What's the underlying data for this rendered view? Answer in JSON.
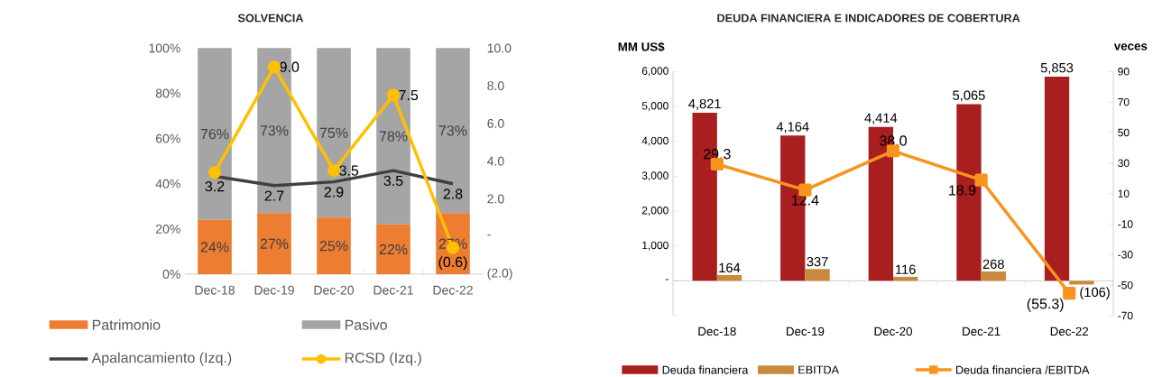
{
  "chart_data": [
    {
      "type": "bar",
      "title": "SOLVENCIA",
      "categories": [
        "Dec-18",
        "Dec-19",
        "Dec-20",
        "Dec-21",
        "Dec-22"
      ],
      "stacked": true,
      "legend": "bottom",
      "ylim": [
        0,
        100
      ],
      "yticks": [
        {
          "value": 0,
          "label": "0%"
        },
        {
          "value": 20,
          "label": "20%"
        },
        {
          "value": 40,
          "label": "40%"
        },
        {
          "value": 60,
          "label": "60%"
        },
        {
          "value": 80,
          "label": "80%"
        },
        {
          "value": 100,
          "label": "100%"
        }
      ],
      "y2lim": [
        -2,
        10
      ],
      "y2ticks": [
        {
          "value": -2,
          "label": "(2.0)"
        },
        {
          "value": 0,
          "label": "-"
        },
        {
          "value": 2,
          "label": "2.0"
        },
        {
          "value": 4,
          "label": "4.0"
        },
        {
          "value": 6,
          "label": "6.0"
        },
        {
          "value": 8,
          "label": "8.0"
        },
        {
          "value": 10,
          "label": "10.0"
        }
      ],
      "series": [
        {
          "name": "Patrimonio",
          "type": "bar",
          "color": "#ed7d31",
          "values": [
            24,
            27,
            25,
            22,
            27
          ],
          "value_labels": [
            "24%",
            "27%",
            "25%",
            "22%",
            "27%"
          ]
        },
        {
          "name": "Pasivo",
          "type": "bar",
          "color": "#a5a5a5",
          "values": [
            76,
            73,
            75,
            78,
            73
          ],
          "value_labels": [
            "76%",
            "73%",
            "75%",
            "78%",
            "73%"
          ]
        },
        {
          "name": "Apalancamiento (Izq.)",
          "type": "line",
          "axis": "y2",
          "color": "#404040",
          "marker": "none",
          "values": [
            3.2,
            2.7,
            2.9,
            3.5,
            2.8
          ],
          "value_labels": [
            "3.2",
            "2.7",
            "2.9",
            "3.5",
            "2.8"
          ]
        },
        {
          "name": "RCSD (Izq.)",
          "type": "line",
          "axis": "y2",
          "color": "#ffc000",
          "marker": "circle",
          "values": [
            3.4,
            9.0,
            3.5,
            7.5,
            -0.6
          ],
          "value_labels": [
            null,
            "9.0",
            "3.5",
            "7.5",
            "(0.6)"
          ]
        }
      ]
    },
    {
      "type": "bar",
      "title": "DEUDA FINANCIERA E INDICADORES DE COBERTURA",
      "ylabel": "MM US$",
      "y2label": "veces",
      "categories": [
        "Dec-18",
        "Dec-19",
        "Dec-20",
        "Dec-21",
        "Dec-22"
      ],
      "legend": "bottom",
      "ylim": [
        -1000,
        6000
      ],
      "yticks": [
        {
          "value": -1000,
          "label": null
        },
        {
          "value": 0,
          "label": "-"
        },
        {
          "value": 1000,
          "label": "1,000"
        },
        {
          "value": 2000,
          "label": "2,000"
        },
        {
          "value": 3000,
          "label": "3,000"
        },
        {
          "value": 4000,
          "label": "4,000"
        },
        {
          "value": 5000,
          "label": "5,000"
        },
        {
          "value": 6000,
          "label": "6,000"
        }
      ],
      "y2lim": [
        -70,
        90
      ],
      "y2ticks": [
        -70,
        -50,
        -30,
        -10,
        10,
        30,
        50,
        70,
        90
      ],
      "series": [
        {
          "name": "Deuda financiera",
          "type": "bar",
          "color": "#a91e1e",
          "values": [
            4821,
            4164,
            4414,
            5065,
            5853
          ],
          "value_labels": [
            "4,821",
            "4,164",
            "4,414",
            "5,065",
            "5,853"
          ]
        },
        {
          "name": "EBITDA",
          "type": "bar",
          "color": "#c98a3d",
          "values": [
            164,
            337,
            116,
            268,
            -106
          ],
          "value_labels": [
            "164",
            "337",
            "116",
            "268",
            "(106)"
          ]
        },
        {
          "name": "Deuda financiera /EBITDA",
          "type": "line",
          "axis": "y2",
          "color": "#f7941d",
          "marker": "square",
          "values": [
            29.3,
            12.4,
            38.0,
            18.9,
            -55.3
          ],
          "value_labels": [
            "29.3",
            "12.4",
            "38.0",
            "18.9",
            "(55.3)"
          ]
        }
      ]
    }
  ]
}
